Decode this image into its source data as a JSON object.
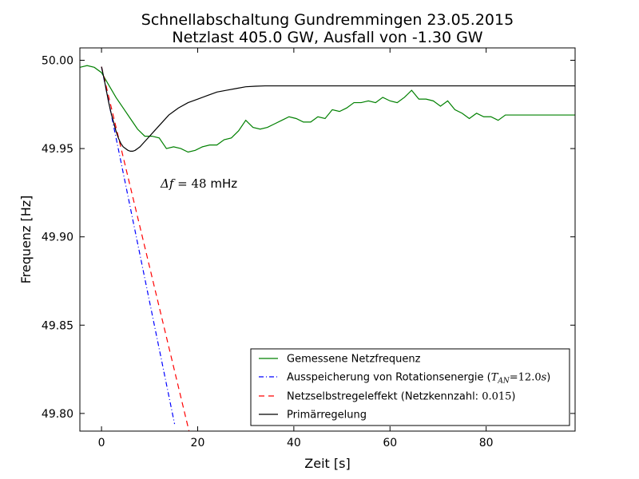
{
  "chart_data": {
    "type": "line",
    "title": "Schnellabschaltung Gundremmingen 23.05.2015",
    "subtitle": "Netzlast 405.0 GW, Ausfall von -1.30 GW",
    "xlabel": "Zeit [s]",
    "ylabel": "Frequenz [Hz]",
    "xlim": [
      -4.5,
      98.5
    ],
    "ylim": [
      49.79,
      50.007
    ],
    "xticks": [
      0,
      20,
      40,
      60,
      80
    ],
    "yticks": [
      49.8,
      49.85,
      49.9,
      49.95,
      50.0
    ],
    "xtick_labels": [
      "0",
      "20",
      "40",
      "60",
      "80"
    ],
    "ytick_labels": [
      "49.80",
      "49.85",
      "49.90",
      "49.95",
      "50.00"
    ],
    "grid": false,
    "legend_position": "lower-right",
    "annotation": {
      "text": "Δf = 48 mHz",
      "x": 12,
      "y": 49.931
    },
    "series": [
      {
        "name": "Gemessene Netzfrequenz",
        "color": "#008000",
        "style": "solid",
        "x": [
          -4.5,
          -3,
          -1.5,
          0,
          1.5,
          3,
          4.5,
          6,
          7.5,
          9,
          10.5,
          12,
          13.5,
          15,
          16.5,
          18,
          19.5,
          21,
          22.5,
          24,
          25.5,
          27,
          28.5,
          30,
          31.5,
          33,
          34.5,
          36,
          37.5,
          39,
          40.5,
          42,
          43.5,
          45,
          46.5,
          48,
          49.5,
          51,
          52.5,
          54,
          55.5,
          57,
          58.5,
          60,
          61.5,
          63,
          64.5,
          66,
          67.5,
          69,
          70.5,
          72,
          73.5,
          75,
          76.5,
          78,
          79.5,
          81,
          82.5,
          84,
          85.5,
          87,
          88.5,
          90,
          91.5,
          93,
          94.5,
          96,
          97.5,
          98.5
        ],
        "y": [
          49.996,
          49.997,
          49.996,
          49.993,
          49.986,
          49.979,
          49.973,
          49.967,
          49.961,
          49.957,
          49.957,
          49.956,
          49.95,
          49.951,
          49.95,
          49.948,
          49.949,
          49.951,
          49.952,
          49.952,
          49.955,
          49.956,
          49.96,
          49.966,
          49.962,
          49.961,
          49.962,
          49.964,
          49.966,
          49.968,
          49.967,
          49.965,
          49.965,
          49.968,
          49.967,
          49.972,
          49.971,
          49.973,
          49.976,
          49.976,
          49.977,
          49.976,
          49.979,
          49.977,
          49.976,
          49.979,
          49.983,
          49.978,
          49.978,
          49.977,
          49.974,
          49.977,
          49.972,
          49.97,
          49.967,
          49.97,
          49.968,
          49.968,
          49.966,
          49.969,
          49.969,
          49.969,
          49.969,
          49.969,
          49.969,
          49.969,
          49.969,
          49.969,
          49.969,
          49.969
        ]
      },
      {
        "name": "Ausspeicherung von Rotationsenergie (T_AN=12.0s)",
        "color": "#0000ff",
        "style": "dashdot",
        "x": [
          0,
          15.2
        ],
        "y": [
          49.9963,
          49.794
        ]
      },
      {
        "name": "Netzselbstregeleffekt (Netzkennzahl: 0.015)",
        "color": "#ff0000",
        "style": "dashed",
        "x": [
          0,
          18.2
        ],
        "y": [
          49.9963,
          49.79
        ]
      },
      {
        "name": "Primärregelung",
        "color": "#000000",
        "style": "solid",
        "x": [
          0,
          0.5,
          1,
          1.5,
          2,
          2.5,
          3,
          3.5,
          4,
          4.5,
          5,
          5.5,
          6,
          6.5,
          7,
          7.5,
          8,
          9,
          10,
          11,
          12,
          13,
          14,
          15,
          16,
          18,
          20,
          22,
          24,
          26,
          28,
          30,
          32,
          34,
          36,
          40,
          50,
          60,
          70,
          80,
          90,
          98.5
        ],
        "y": [
          49.9963,
          49.99,
          49.983,
          49.976,
          49.97,
          49.965,
          49.96,
          49.956,
          49.953,
          49.951,
          49.95,
          49.949,
          49.9485,
          49.9485,
          49.949,
          49.95,
          49.951,
          49.954,
          49.957,
          49.96,
          49.963,
          49.966,
          49.969,
          49.971,
          49.973,
          49.976,
          49.978,
          49.98,
          49.982,
          49.983,
          49.984,
          49.985,
          49.9853,
          49.9855,
          49.9855,
          49.9855,
          49.9855,
          49.9855,
          49.9855,
          49.9855,
          49.9855,
          49.9855
        ]
      }
    ],
    "legend": [
      "Gemessene Netzfrequenz",
      "Ausspeicherung von Rotationsenergie (T_AN=12.0s)",
      "Netzselbstregeleffekt (Netzkennzahl: 0.015)",
      "Primärregelung"
    ]
  }
}
